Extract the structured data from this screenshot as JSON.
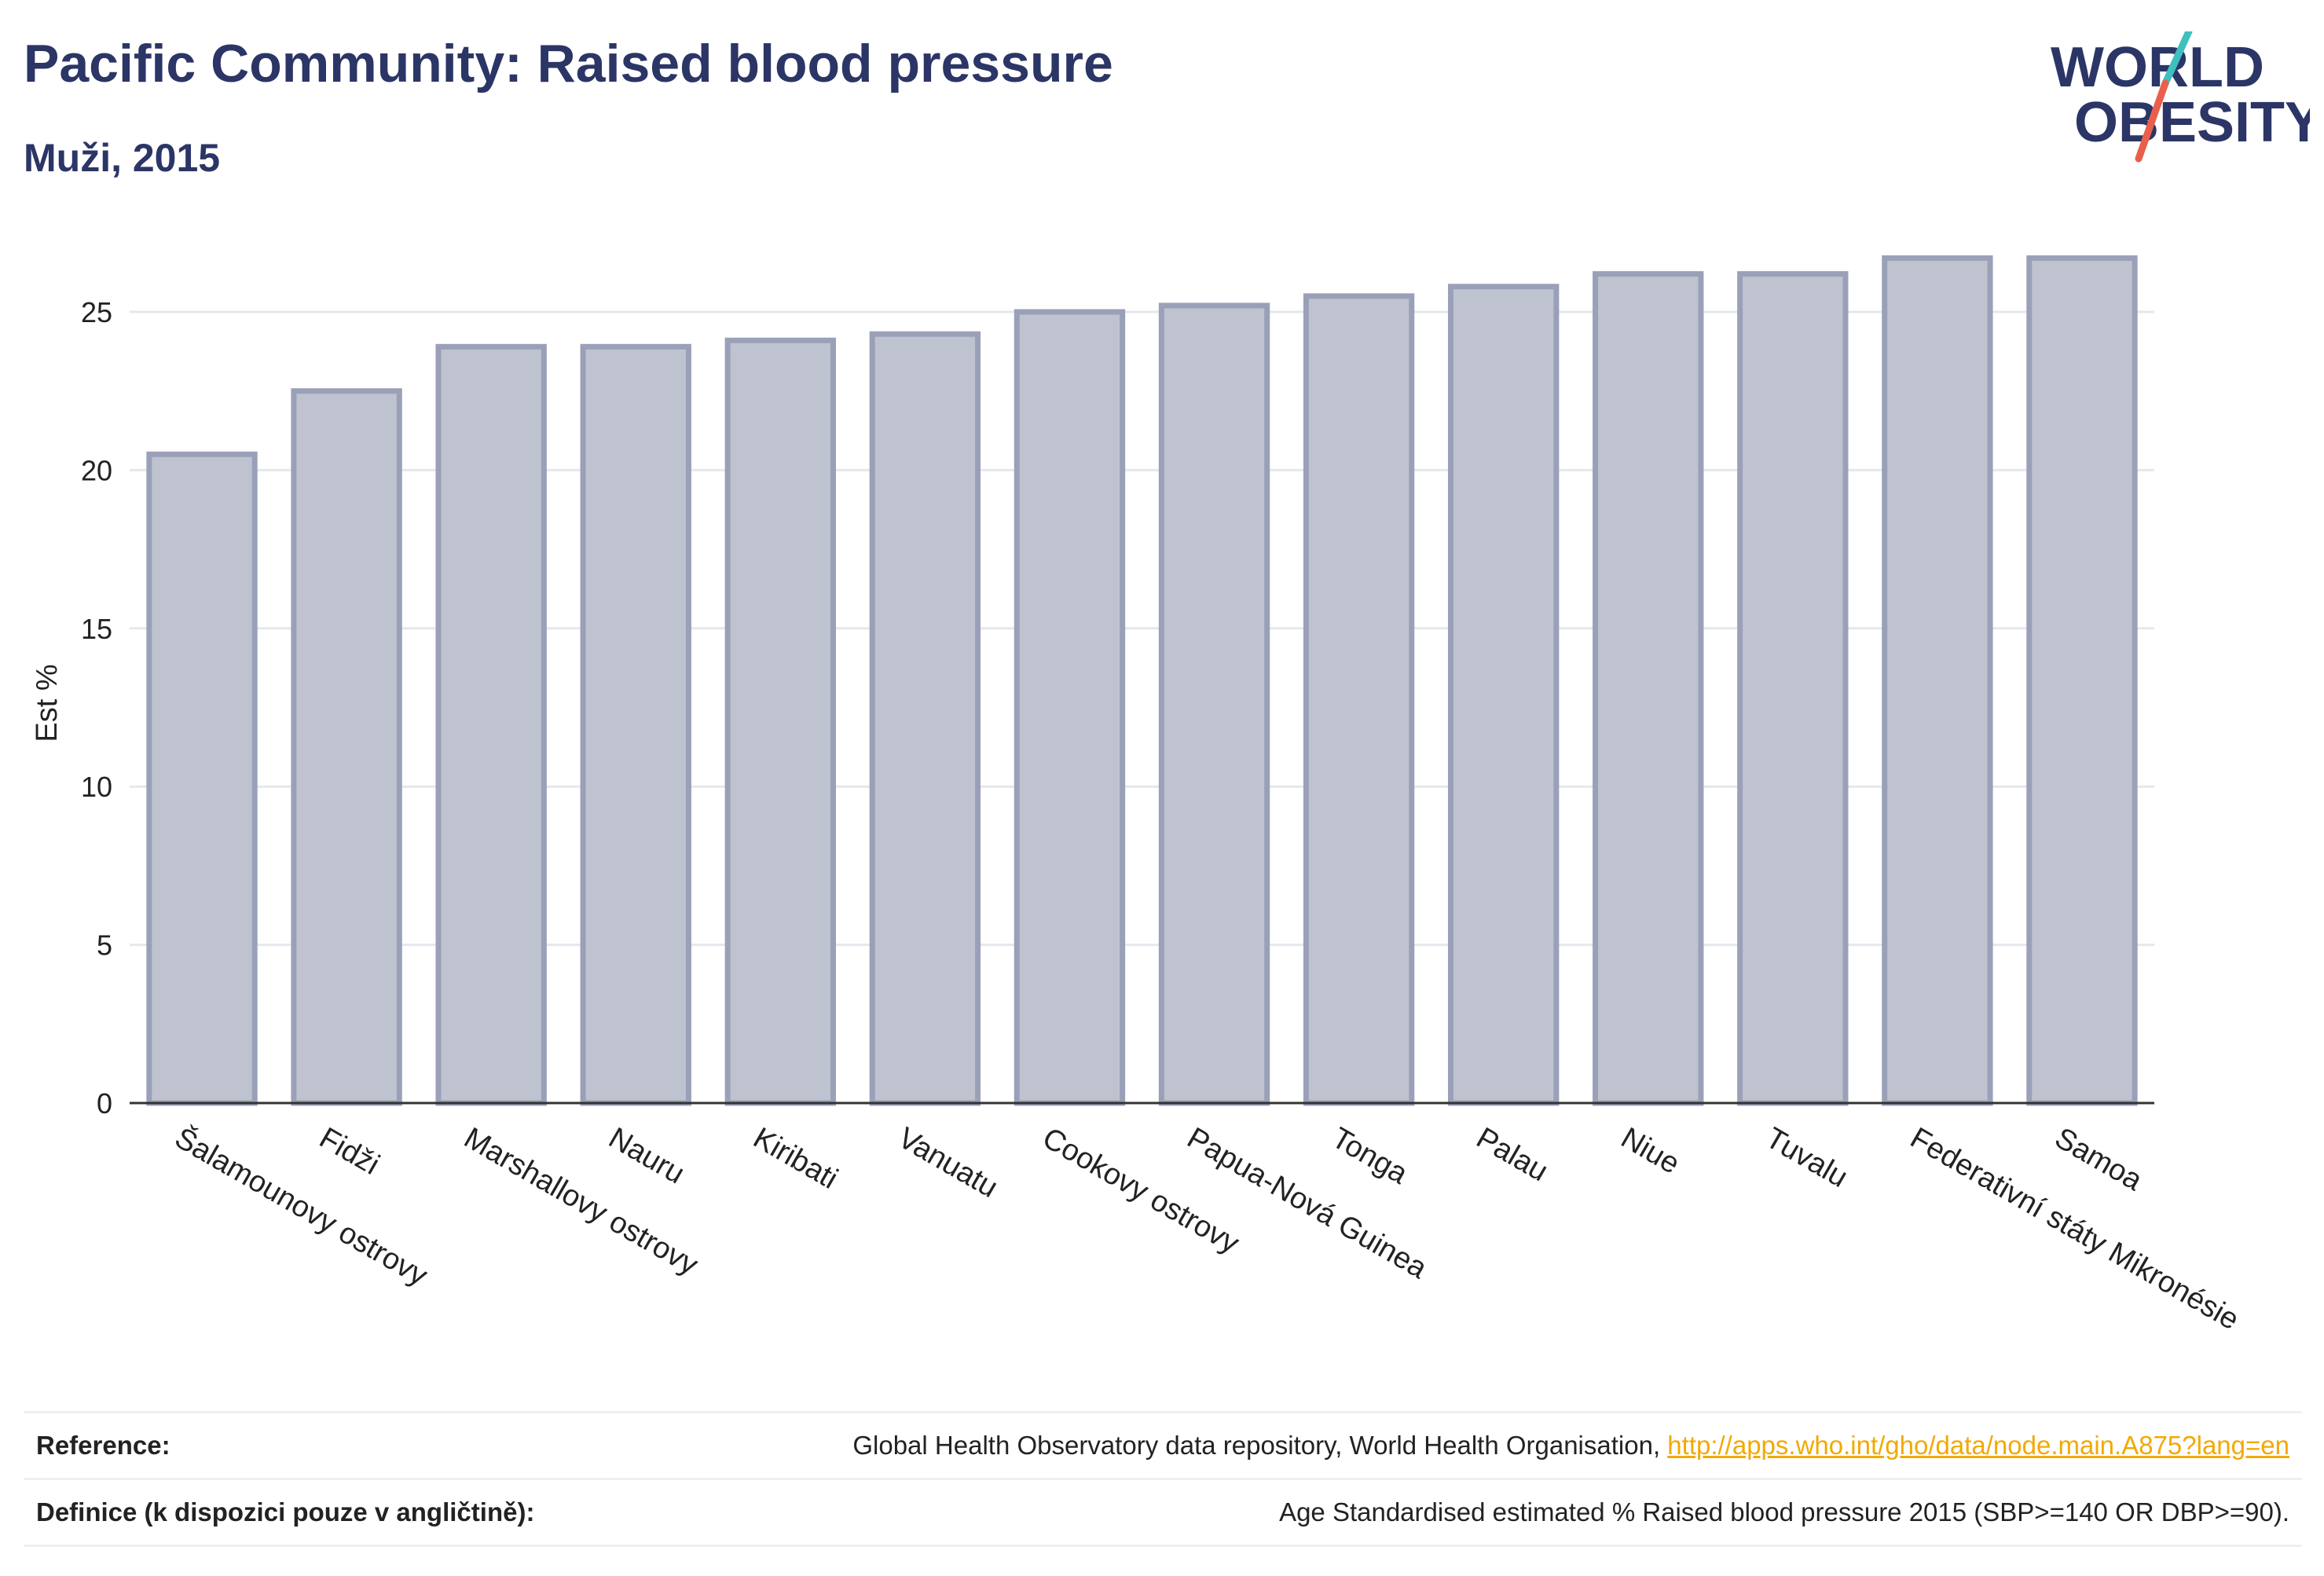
{
  "header": {
    "title": "Pacific Community: Raised blood pressure",
    "subtitle": "Muži, 2015"
  },
  "logo": {
    "line1": "WORLD",
    "line2": "OBESITY",
    "colors": {
      "text": "#2b3566",
      "slash_teal": "#3fbfbf",
      "slash_red": "#e8604c"
    }
  },
  "chart_data": {
    "type": "bar",
    "title": "",
    "xlabel": "",
    "ylabel": "Est %",
    "ylim": [
      0,
      28
    ],
    "yticks": [
      0,
      5,
      10,
      15,
      20,
      25
    ],
    "grid": true,
    "categories": [
      "Šalamounovy ostrovy",
      "Fidži",
      "Marshallovy ostrovy",
      "Nauru",
      "Kiribati",
      "Vanuatu",
      "Cookovy ostrovy",
      "Papua-Nová Guinea",
      "Tonga",
      "Palau",
      "Niue",
      "Tuvalu",
      "Federativní státy Mikronésie",
      "Samoa"
    ],
    "values": [
      20.5,
      22.5,
      23.9,
      23.9,
      24.1,
      24.3,
      25.0,
      25.2,
      25.5,
      25.8,
      26.2,
      26.2,
      26.7,
      26.7
    ],
    "bar_fill": "#bfc3d0",
    "bar_stroke": "#9aa0b8"
  },
  "footer": {
    "reference_label": "Reference:",
    "reference_text": "Global Health Observatory data repository, World Health Organisation, ",
    "reference_link": "http://apps.who.int/gho/data/node.main.A875?lang=en",
    "definition_label": "Definice (k dispozici pouze v angličtině):",
    "definition_text": "Age Standardised estimated % Raised blood pressure 2015 (SBP>=140 OR DBP>=90)."
  }
}
